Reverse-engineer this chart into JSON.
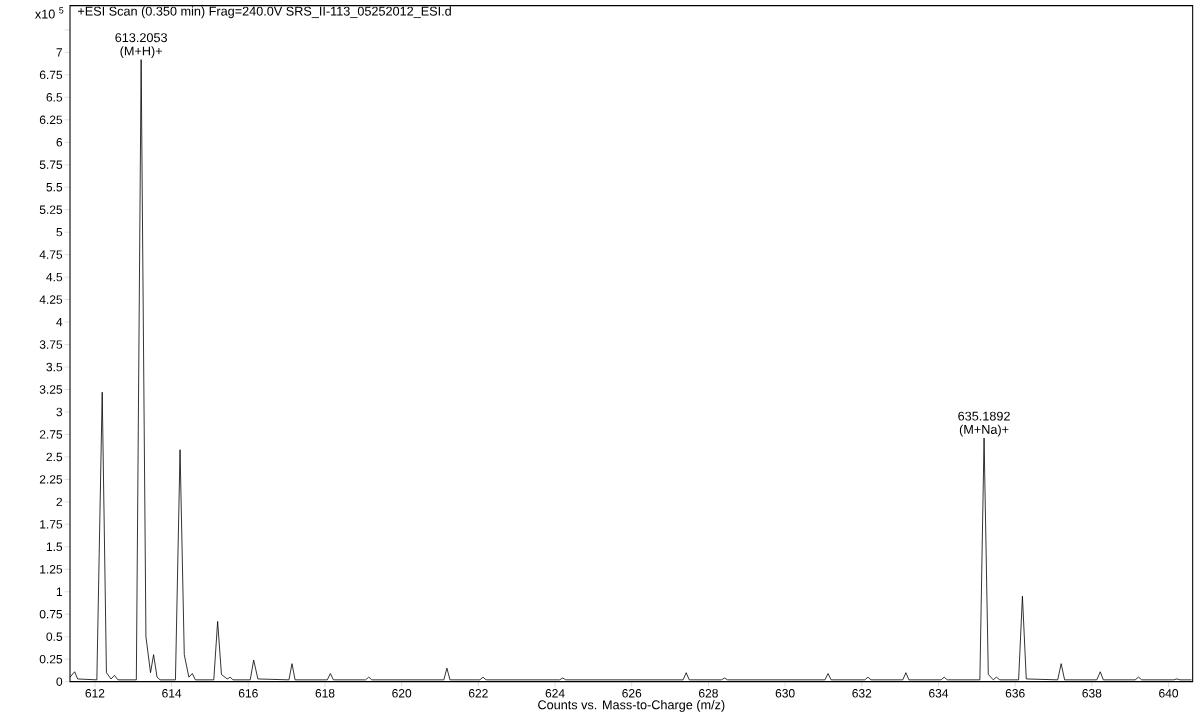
{
  "chart_data": {
    "type": "line",
    "title": "+ESI Scan (0.350 min) Frag=240.0V SRS_II-113_05252012_ESI.d",
    "xlabel": "Counts vs. Mass-to-Charge (m/z)",
    "annotations": [
      "x10 $^{5}$",
      {
        "text": "613.2053 (M+H)+",
        "x": 613.2053,
        "y": 6.92
      },
      {
        "text": "635.1892 (M+Na)+",
        "x": 635.1892,
        "y": 2.71
      }
    ],
    "xlim": [
      611.35,
      640.63
    ],
    "ylim": [
      0,
      7.52
    ],
    "xticks": [
      612,
      614,
      616,
      618,
      620,
      622,
      624,
      626,
      628,
      630,
      632,
      634,
      636,
      638,
      640
    ],
    "yticks": [
      0,
      0.25,
      0.5,
      0.75,
      1,
      1.25,
      1.5,
      1.75,
      2,
      2.25,
      2.5,
      2.75,
      3,
      3.25,
      3.5,
      3.75,
      4,
      4.25,
      4.5,
      4.75,
      5,
      5.25,
      5.5,
      5.75,
      6,
      6.25,
      6.5,
      6.75,
      7,
      {
        "value": 7.25,
        "label": null
      }
    ],
    "series": [
      {
        "color": "#000000",
        "x": [
          611.35,
          611.47,
          611.55,
          612.05,
          612.19,
          612.3,
          612.42,
          612.51,
          612.6,
          613.08,
          613.2053,
          613.33,
          613.45,
          613.53,
          613.62,
          613.7,
          614.1,
          614.22,
          614.33,
          614.45,
          614.54,
          614.62,
          615.1,
          615.2,
          615.3,
          615.45,
          615.53,
          615.6,
          616.05,
          616.14,
          616.25,
          617.06,
          617.14,
          617.22,
          618.06,
          618.14,
          618.22,
          619.06,
          619.14,
          619.22,
          621.1,
          621.18,
          621.26,
          622.04,
          622.12,
          622.2,
          624.12,
          624.2,
          624.28,
          627.34,
          627.42,
          627.5,
          628.34,
          628.42,
          628.5,
          631.04,
          631.12,
          631.2,
          632.08,
          632.16,
          632.24,
          633.07,
          633.15,
          633.23,
          634.07,
          634.15,
          634.23,
          635.08,
          635.1892,
          635.3,
          635.43,
          635.51,
          635.6,
          636.09,
          636.19,
          636.29,
          637.11,
          637.2,
          637.29,
          638.13,
          638.22,
          638.3,
          639.13,
          639.22,
          639.3,
          640.13,
          640.22,
          640.3,
          640.6
        ],
        "values": [
          0.05,
          0.11,
          0.03,
          0.02,
          3.22,
          0.1,
          0.03,
          0.07,
          0.02,
          0.02,
          6.92,
          0.5,
          0.1,
          0.3,
          0.05,
          0.02,
          0.02,
          2.58,
          0.3,
          0.05,
          0.09,
          0.02,
          0.02,
          0.67,
          0.08,
          0.03,
          0.05,
          0.02,
          0.02,
          0.24,
          0.03,
          0.02,
          0.2,
          0.02,
          0.02,
          0.09,
          0.02,
          0.02,
          0.05,
          0.02,
          0.02,
          0.15,
          0.02,
          0.02,
          0.05,
          0.02,
          0.02,
          0.04,
          0.02,
          0.02,
          0.1,
          0.02,
          0.02,
          0.04,
          0.02,
          0.02,
          0.09,
          0.02,
          0.02,
          0.05,
          0.02,
          0.02,
          0.1,
          0.02,
          0.02,
          0.05,
          0.02,
          0.02,
          2.71,
          0.08,
          0.02,
          0.05,
          0.02,
          0.02,
          0.95,
          0.03,
          0.02,
          0.2,
          0.02,
          0.02,
          0.11,
          0.02,
          0.02,
          0.05,
          0.02,
          0.02,
          0.03,
          0.02,
          0.02
        ]
      }
    ]
  }
}
